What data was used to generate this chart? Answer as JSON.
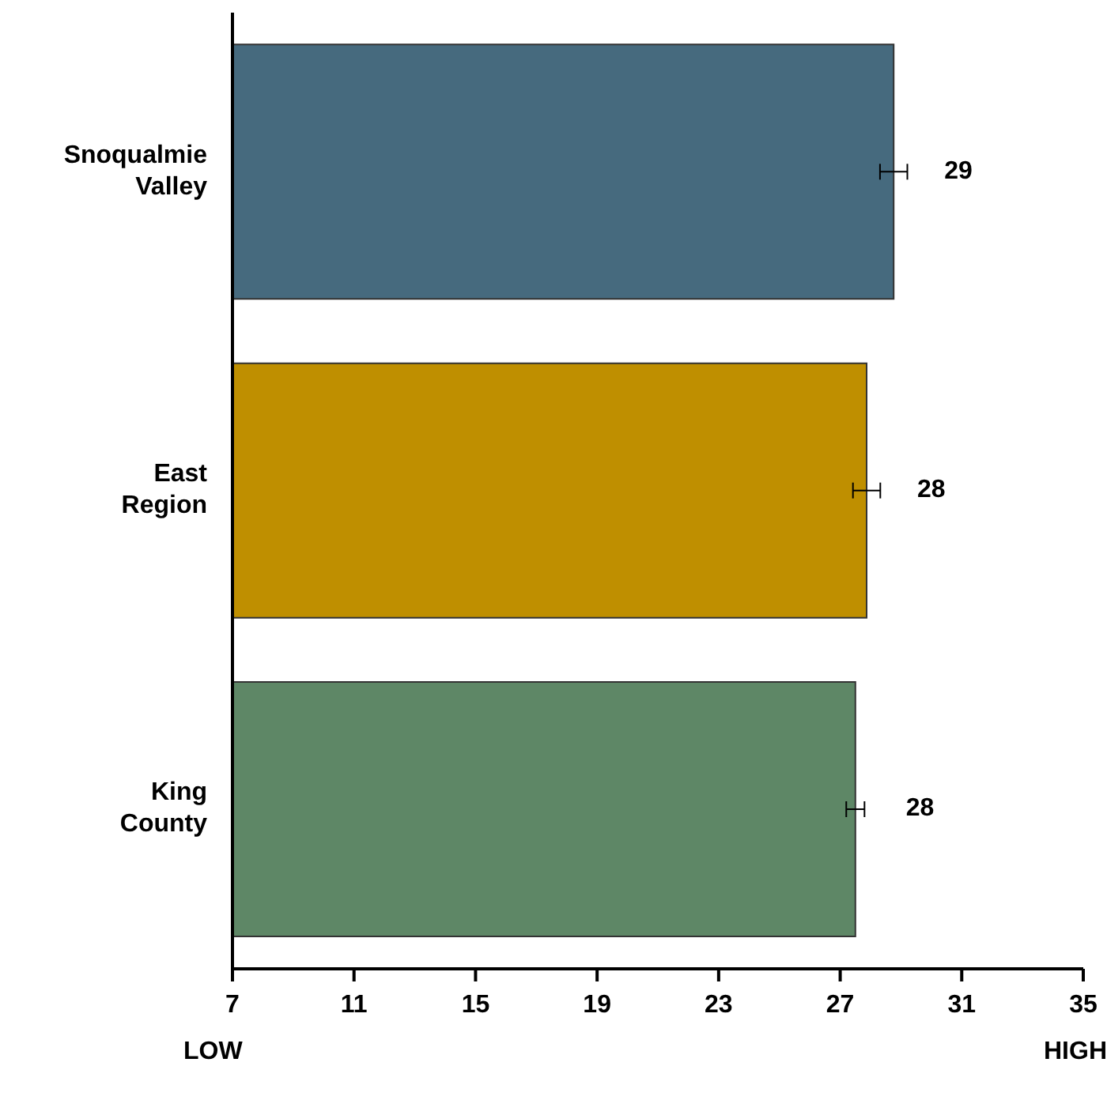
{
  "chart_data": {
    "type": "bar",
    "orientation": "horizontal",
    "categories": [
      "Snoqualmie Valley",
      "East Region",
      "King County"
    ],
    "values": [
      28.76,
      27.87,
      27.5
    ],
    "colors": [
      "#466a7e",
      "#bf8f00",
      "#5e8766"
    ],
    "errors": [
      0.45,
      0.45,
      0.3
    ],
    "value_labels": [
      "29",
      "28",
      "28"
    ],
    "xlim": [
      7,
      35
    ],
    "xticks": [
      7,
      11,
      15,
      19,
      23,
      27,
      31,
      35
    ],
    "annotations": [
      "LOW",
      "HIGH"
    ]
  }
}
